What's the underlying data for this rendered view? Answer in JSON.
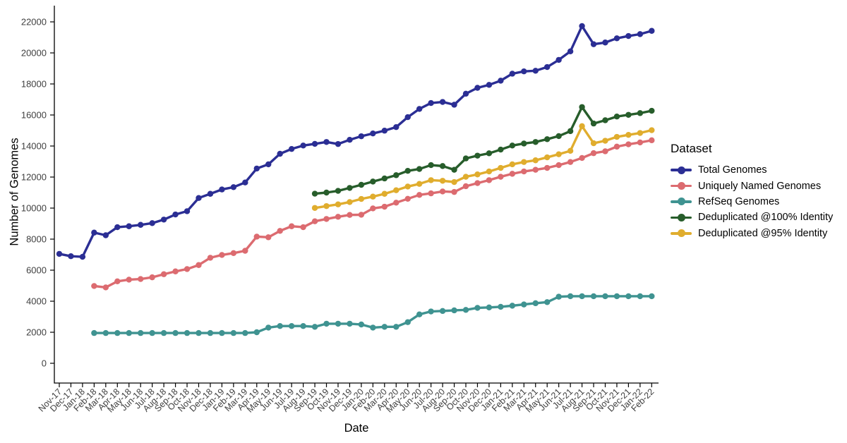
{
  "chart_data": {
    "type": "line",
    "title": "",
    "xlabel": "Date",
    "ylabel": "Number of Genomes",
    "legend_title": "Dataset",
    "legend_position": "right",
    "grid": false,
    "ylim": [
      0,
      22000
    ],
    "ytick_step": 2000,
    "categories": [
      "Nov-17",
      "Dec-17",
      "Jan-18",
      "Feb-18",
      "Mar-18",
      "Apr-18",
      "May-18",
      "Jun-18",
      "Jul-18",
      "Aug-18",
      "Sep-18",
      "Oct-18",
      "Nov-18",
      "Dec-18",
      "Jan-19",
      "Feb-19",
      "Mar-19",
      "Apr-19",
      "May-19",
      "Jun-19",
      "Jul-19",
      "Aug-19",
      "Sep-19",
      "Oct-19",
      "Nov-19",
      "Dec-19",
      "Jan-20",
      "Feb-20",
      "Mar-20",
      "Apr-20",
      "May-20",
      "Jun-20",
      "Jul-20",
      "Aug-20",
      "Sep-20",
      "Oct-20",
      "Nov-20",
      "Dec-20",
      "Jan-21",
      "Feb-21",
      "Mar-21",
      "Apr-21",
      "May-21",
      "Jun-21",
      "Jul-21",
      "Aug-21",
      "Sep-21",
      "Oct-21",
      "Nov-21",
      "Dec-21",
      "Jan-22",
      "Feb-22"
    ],
    "series": [
      {
        "name": "Total Genomes",
        "color": "#2b2e94",
        "start_index": 0,
        "values": [
          7050,
          6900,
          6860,
          8420,
          8250,
          8770,
          8830,
          8920,
          9030,
          9260,
          9590,
          9800,
          10650,
          10920,
          11200,
          11350,
          11650,
          12550,
          12820,
          13500,
          13810,
          14030,
          14140,
          14260,
          14130,
          14400,
          14630,
          14810,
          14990,
          15220,
          15860,
          16390,
          16770,
          16840,
          16660,
          17370,
          17750,
          17940,
          18210,
          18660,
          18810,
          18850,
          19090,
          19550,
          20100,
          21730,
          20560,
          20670,
          20940,
          21090,
          21210,
          21420
        ]
      },
      {
        "name": "Uniquely Named Genomes",
        "color": "#dc6b70",
        "start_index": 3,
        "values": [
          4980,
          4890,
          5280,
          5390,
          5430,
          5540,
          5740,
          5920,
          6070,
          6330,
          6800,
          6980,
          7100,
          7250,
          8160,
          8120,
          8530,
          8830,
          8770,
          9150,
          9300,
          9440,
          9560,
          9570,
          9980,
          10090,
          10350,
          10600,
          10850,
          10950,
          11070,
          11040,
          11410,
          11610,
          11800,
          12020,
          12210,
          12360,
          12470,
          12590,
          12770,
          12970,
          13230,
          13540,
          13660,
          13960,
          14110,
          14230,
          14370
        ]
      },
      {
        "name": "RefSeq Genomes",
        "color": "#3f9391",
        "start_index": 3,
        "values": [
          1950,
          1950,
          1950,
          1950,
          1950,
          1950,
          1950,
          1950,
          1950,
          1950,
          1950,
          1950,
          1950,
          1950,
          2000,
          2300,
          2400,
          2400,
          2400,
          2350,
          2550,
          2550,
          2550,
          2500,
          2300,
          2350,
          2350,
          2650,
          3150,
          3340,
          3370,
          3410,
          3440,
          3570,
          3600,
          3640,
          3710,
          3790,
          3870,
          3940,
          4290,
          4320,
          4320,
          4320,
          4320,
          4320,
          4320,
          4320,
          4320
        ]
      },
      {
        "name": "Deduplicated @100% Identity",
        "color": "#275d2b",
        "start_index": 22,
        "values": [
          10930,
          11000,
          11110,
          11300,
          11500,
          11710,
          11910,
          12120,
          12400,
          12520,
          12770,
          12710,
          12470,
          13200,
          13380,
          13530,
          13770,
          14030,
          14160,
          14260,
          14440,
          14640,
          14960,
          16510,
          15450,
          15660,
          15900,
          16010,
          16120,
          16270
        ]
      },
      {
        "name": "Deduplicated @95% Identity",
        "color": "#e0ad2e",
        "start_index": 22,
        "values": [
          10010,
          10130,
          10240,
          10390,
          10590,
          10740,
          10920,
          11150,
          11390,
          11560,
          11800,
          11760,
          11680,
          12020,
          12170,
          12360,
          12590,
          12820,
          12970,
          13080,
          13270,
          13470,
          13690,
          15280,
          14180,
          14340,
          14590,
          14720,
          14840,
          15020
        ]
      }
    ]
  }
}
